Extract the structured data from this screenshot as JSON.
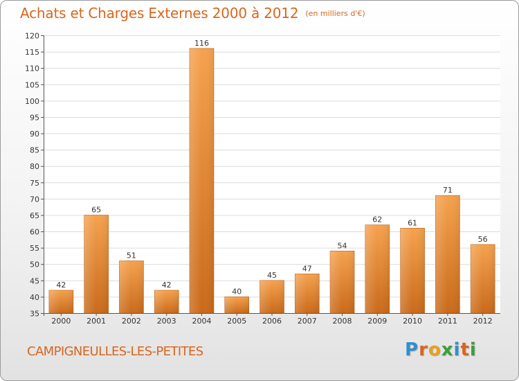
{
  "header": {
    "title": "Achats et Charges Externes 2000 à 2012",
    "unit": "(en milliers d'€)"
  },
  "footer": {
    "place": "CAMPIGNEULLES-LES-PETITES",
    "logo": "Proxiti",
    "logo_letters": [
      "P",
      "r",
      "o",
      "x",
      "i",
      "t",
      "i"
    ],
    "logo_colors": [
      "#2f8fd0",
      "#d8661d",
      "#e8a020",
      "#3aa03a",
      "#2f8fd0",
      "#d8661d",
      "#3aa03a"
    ]
  },
  "colors": {
    "accent": "#d8661d",
    "bar_top": "#f5a24e",
    "bar_bottom": "#c96a1a"
  },
  "chart_data": {
    "type": "bar",
    "title": "Achats et Charges Externes 2000 à 2012",
    "subtitle": "(en milliers d'€)",
    "categories": [
      "2000",
      "2001",
      "2002",
      "2003",
      "2004",
      "2005",
      "2006",
      "2007",
      "2008",
      "2009",
      "2010",
      "2011",
      "2012"
    ],
    "values": [
      42,
      65,
      51,
      42,
      116,
      40,
      45,
      47,
      54,
      62,
      61,
      71,
      56
    ],
    "ylim": [
      35,
      120
    ],
    "yticks": [
      35,
      40,
      45,
      50,
      55,
      60,
      65,
      70,
      75,
      80,
      85,
      90,
      95,
      100,
      105,
      110,
      115,
      120
    ],
    "grid": true,
    "data_labels": true
  }
}
